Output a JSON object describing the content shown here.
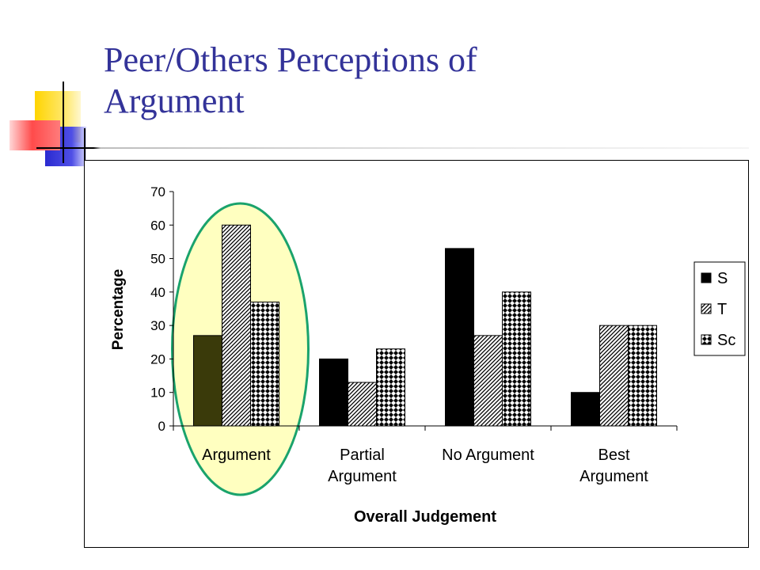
{
  "slide": {
    "title_line1": "Peer/Others Perceptions of",
    "title_line2": "Argument",
    "title_color": "#333399"
  },
  "chart_data": {
    "type": "bar",
    "categories": [
      [
        "Argument"
      ],
      [
        "Partial",
        "Argument"
      ],
      [
        "No Argument"
      ],
      [
        "Best",
        "Argument"
      ]
    ],
    "series": [
      {
        "name": "S",
        "values": [
          27,
          20,
          53,
          10
        ],
        "pattern": "solid"
      },
      {
        "name": "T",
        "values": [
          60,
          13,
          27,
          30
        ],
        "pattern": "diagonal-hatch"
      },
      {
        "name": "Sc",
        "values": [
          37,
          23,
          40,
          30
        ],
        "pattern": "checker"
      }
    ],
    "xlabel": "Overall Judgement",
    "ylabel": "Percentage",
    "ylim": [
      0,
      70
    ],
    "yticks": [
      0,
      10,
      20,
      30,
      40,
      50,
      60,
      70
    ],
    "legend_position": "right",
    "highlight": {
      "category_index": 0,
      "fill": "#ffffc0",
      "stroke": "#1aa36c"
    },
    "colors": {
      "S_default": "#000000",
      "S_highlighted": "#3a3a0a"
    },
    "grid": false
  }
}
